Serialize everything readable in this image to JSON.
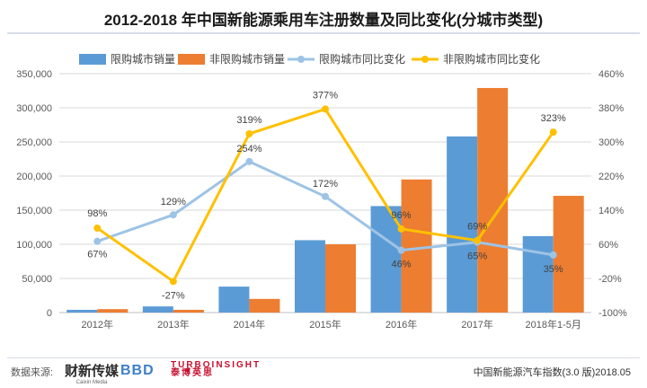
{
  "header": {
    "title": "2012-2018 年中国新能源乘用车注册数量及同比变化(分城市类型)"
  },
  "footer": {
    "source_label": "数据来源:",
    "logo1_text": "财新传媒",
    "logo1_sub": "Caixin Media",
    "logo2_text": "BBD",
    "logo3_text": "TURBOINSIGHT",
    "logo3_sub": "泰博英思",
    "note": "中国新能源汽车指数(3.0 版)2018.05"
  },
  "colors": {
    "restricted_bar": "#5b9bd5",
    "unrestricted_bar": "#ed7d31",
    "restricted_line": "#9dc3e6",
    "unrestricted_line": "#ffc000"
  },
  "chart_data": {
    "type": "bar",
    "categories": [
      "2012年",
      "2013年",
      "2014年",
      "2015年",
      "2016年",
      "2017年",
      "2018年1-5月"
    ],
    "series": [
      {
        "name": "限购城市销量",
        "type": "bar",
        "axis": "left",
        "values": [
          4000,
          9000,
          38000,
          106000,
          156000,
          258000,
          112000
        ]
      },
      {
        "name": "非限购城市销量",
        "type": "bar",
        "axis": "left",
        "values": [
          5000,
          4000,
          20000,
          100000,
          195000,
          329000,
          171000
        ]
      },
      {
        "name": "限购城市同比变化",
        "type": "line",
        "axis": "right",
        "values": [
          67,
          129,
          254,
          172,
          46,
          65,
          35
        ],
        "labels": [
          "67%",
          "129%",
          "254%",
          "172%",
          "46%",
          "65%",
          "35%"
        ]
      },
      {
        "name": "非限购城市同比变化",
        "type": "line",
        "axis": "right",
        "values": [
          98,
          -27,
          319,
          377,
          96,
          69,
          323
        ],
        "labels": [
          "98%",
          "-27%",
          "319%",
          "377%",
          "96%",
          "69%",
          "323%"
        ]
      }
    ],
    "y_left": {
      "min": 0,
      "max": 350000,
      "ticks": [
        "0",
        "50,000",
        "100,000",
        "150,000",
        "200,000",
        "250,000",
        "300,000",
        "350,000"
      ]
    },
    "y_right": {
      "min": -100,
      "max": 460,
      "ticks": [
        "-100%",
        "-20%",
        "60%",
        "140%",
        "220%",
        "300%",
        "380%",
        "460%"
      ]
    },
    "grid": true,
    "legend_position": "top"
  }
}
